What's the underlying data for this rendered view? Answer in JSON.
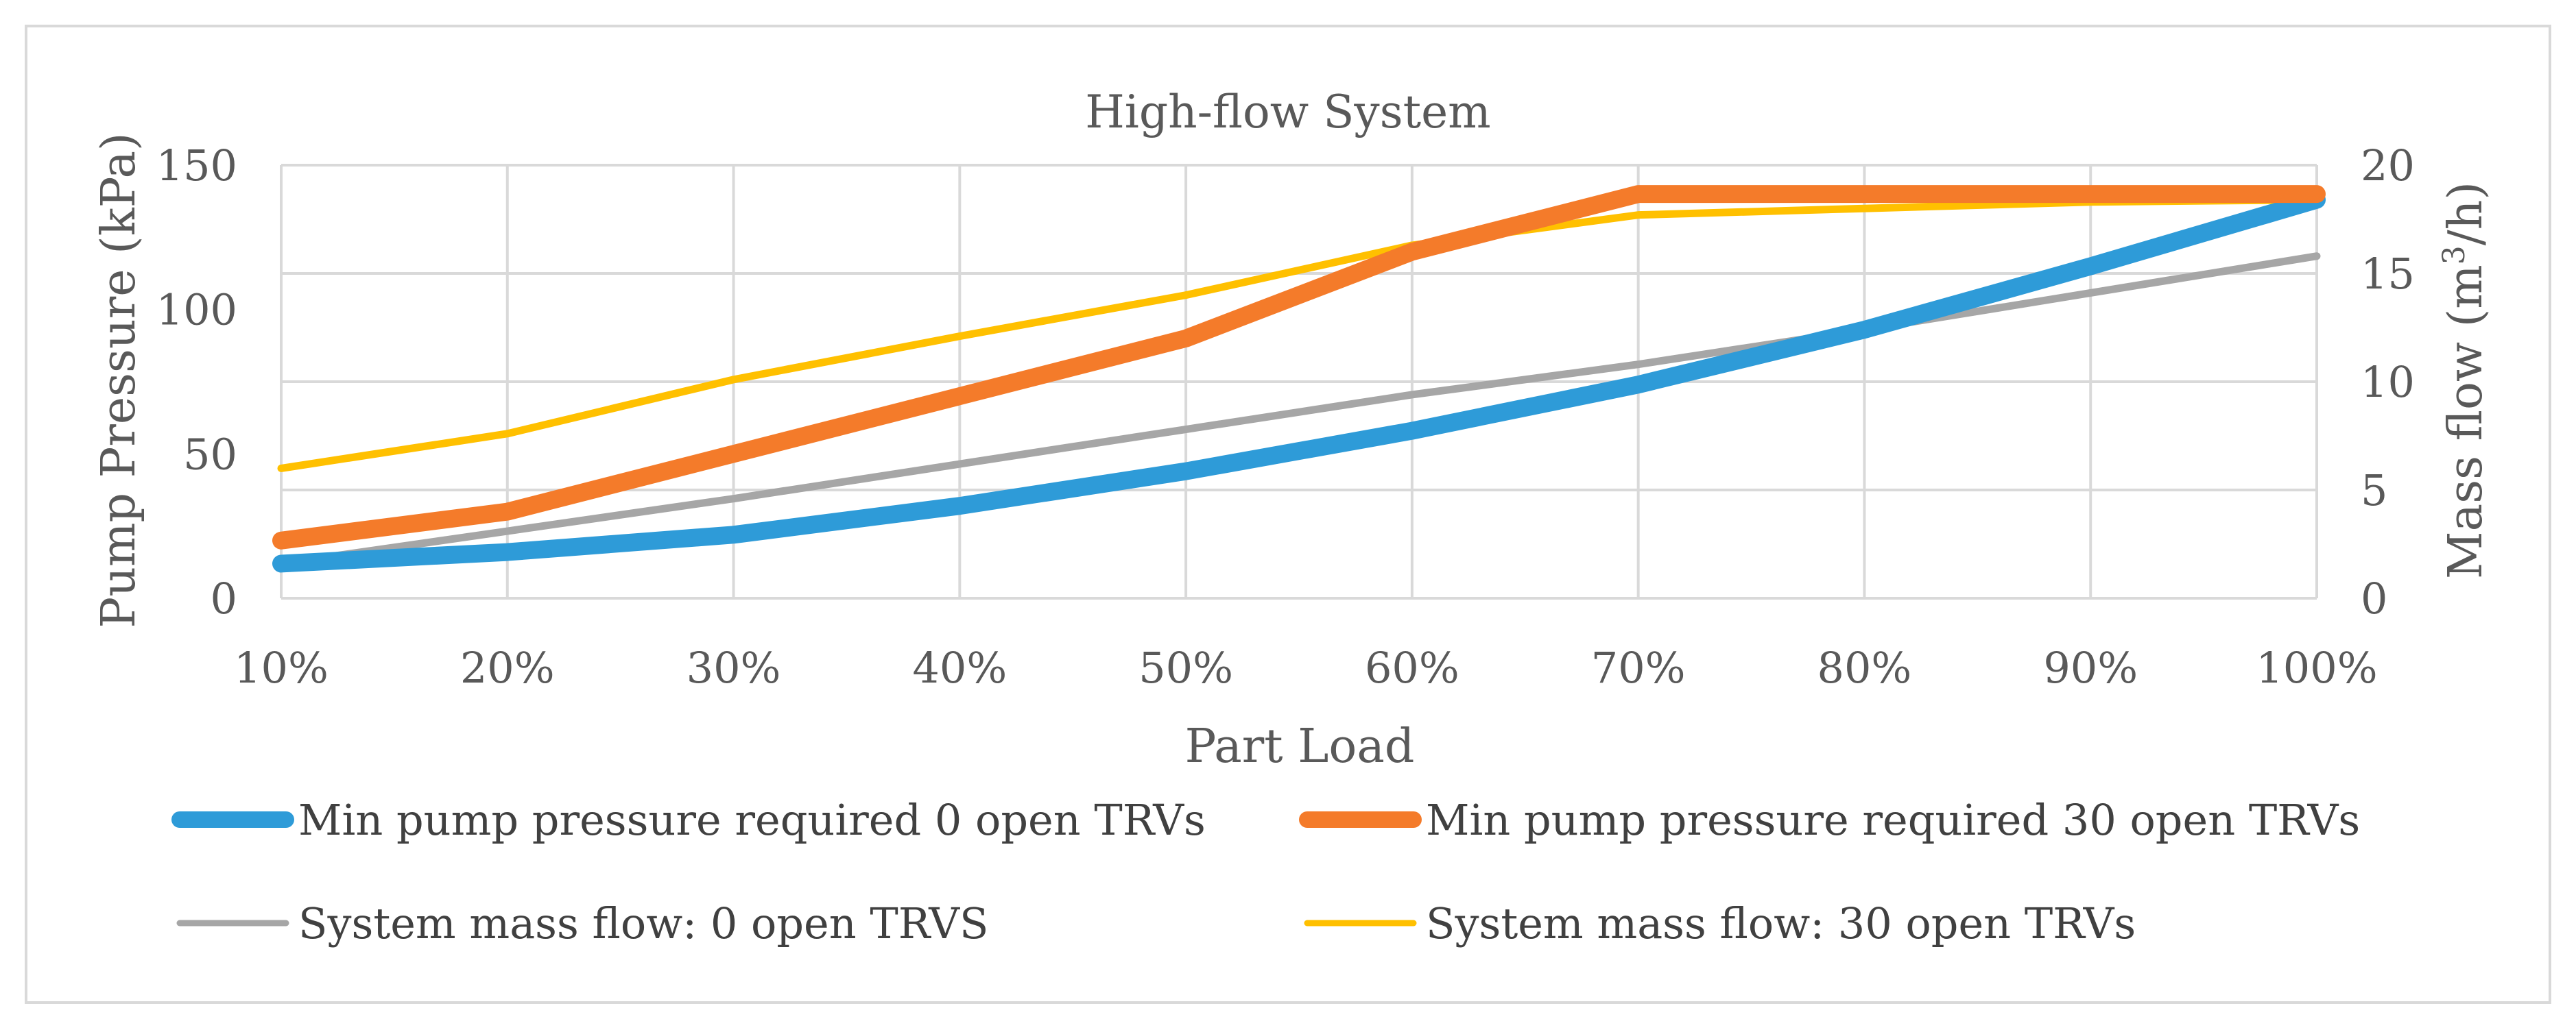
{
  "chart_data": {
    "type": "line",
    "title": "High-flow System",
    "xlabel": "Part Load",
    "ylabel_left": "Pump Pressure (kPa)",
    "ylabel_right_parts": [
      "Mass flow (m",
      "3",
      "/h)"
    ],
    "categories": [
      "10%",
      "20%",
      "30%",
      "40%",
      "50%",
      "60%",
      "70%",
      "80%",
      "90%",
      "100%"
    ],
    "y_left": {
      "min": 0,
      "max": 150,
      "ticks": [
        "0",
        "50",
        "100",
        "150"
      ],
      "tick_values": [
        0,
        50,
        100,
        150
      ]
    },
    "y_right": {
      "min": 0,
      "max": 20,
      "ticks": [
        "0",
        "5",
        "10",
        "15",
        "20"
      ],
      "tick_values": [
        0,
        5,
        10,
        15,
        20
      ]
    },
    "grid": true,
    "legend_position": "bottom",
    "series": [
      {
        "name": "Min pump pressure required 0 open TRVs",
        "axis": "left",
        "color": "#2E9BD8",
        "style": "thick",
        "values": [
          12,
          16,
          22,
          32,
          44,
          58,
          74,
          93,
          115,
          138
        ]
      },
      {
        "name": "Min pump pressure required 30 open TRVs",
        "axis": "left",
        "color": "#F47B2A",
        "style": "thick",
        "values": [
          20,
          30,
          50,
          70,
          90,
          120,
          140,
          140,
          140,
          140
        ]
      },
      {
        "name": "System mass flow: 0 open TRVS",
        "axis": "right",
        "color": "#A6A6A6",
        "style": "thin",
        "values": [
          1.6,
          3.1,
          4.6,
          6.2,
          7.8,
          9.4,
          10.8,
          12.4,
          14.1,
          15.8
        ]
      },
      {
        "name": "System mass flow: 30 open TRVs",
        "axis": "right",
        "color": "#FFC000",
        "style": "thin",
        "values": [
          6.0,
          7.6,
          10.1,
          12.1,
          14.0,
          16.3,
          17.7,
          18.0,
          18.3,
          18.4
        ]
      }
    ]
  }
}
